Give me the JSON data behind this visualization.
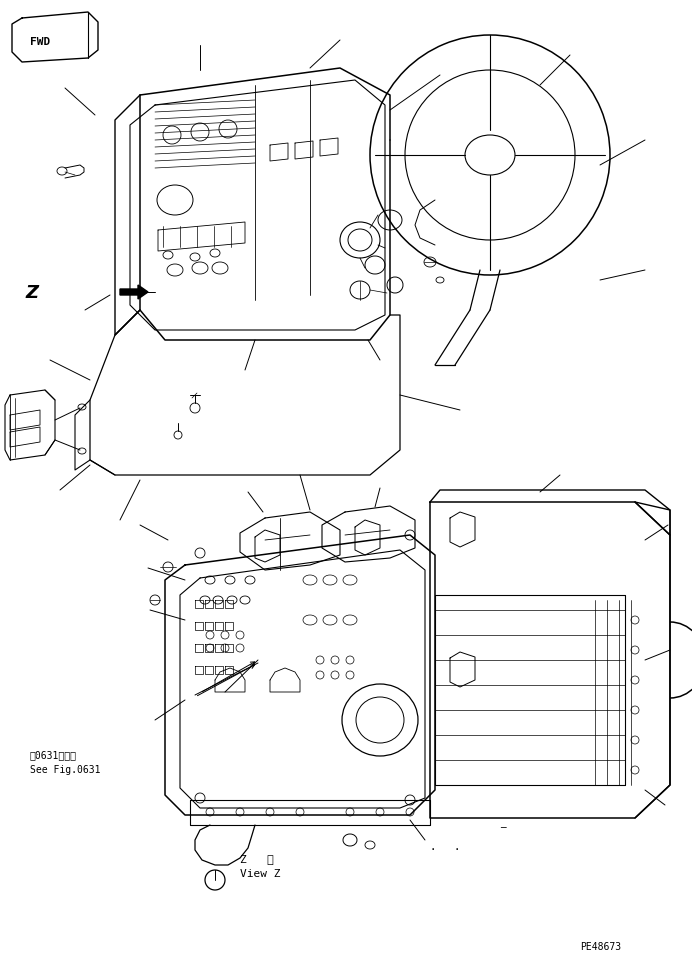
{
  "background_color": "#ffffff",
  "line_color": "#000000",
  "fig_width": 6.92,
  "fig_height": 9.58,
  "dpi": 100,
  "fwd_label": "FWD",
  "z_label": "Z",
  "view_z_label1": "Z   視",
  "view_z_label2": "View Z",
  "ref_label1": "第0631図参照",
  "ref_label2": "See Fig.0631",
  "part_number": "PE48673"
}
